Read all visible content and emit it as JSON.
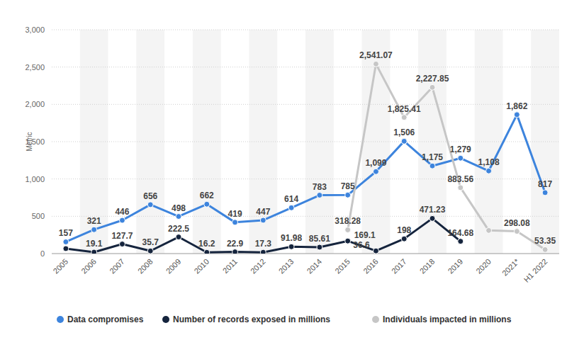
{
  "chart_data": {
    "type": "line",
    "y_label": "Metric",
    "categories": [
      "2005",
      "2006",
      "2007",
      "2008",
      "2009",
      "2010",
      "2011",
      "2012",
      "2013",
      "2014",
      "2015",
      "2016",
      "2017",
      "2018",
      "2019",
      "2020",
      "2021*",
      "H1 2022"
    ],
    "ylim": [
      0,
      3000
    ],
    "yticks": [
      0,
      500,
      {
        "value": 1000,
        "label": "1,000"
      },
      {
        "value": 1500,
        "label": "1,500"
      },
      {
        "value": 2000,
        "label": "2,000"
      },
      {
        "value": 2500,
        "label": "2,500"
      },
      {
        "value": 3000,
        "label": "3,000"
      }
    ],
    "grid": true,
    "legend": "bottom",
    "data_labels": true,
    "marker": "circle",
    "series": [
      {
        "name": "Data compromises",
        "color": "#3d84dd",
        "values": [
          157,
          321,
          446,
          656,
          498,
          662,
          419,
          447,
          614,
          783,
          785,
          1099,
          1506,
          1175,
          1279,
          1108,
          1862,
          817
        ],
        "value_labels": [
          "157",
          "321",
          "446",
          "656",
          "498",
          "662",
          "419",
          "447",
          "614",
          "783",
          "785",
          "1,099",
          "1,506",
          "1,175",
          "1,279",
          "1,108",
          "1,862",
          "817"
        ]
      },
      {
        "name": "Number of records exposed in millions",
        "color": "#15243d",
        "values": [
          67,
          19.1,
          127.7,
          35.7,
          222.5,
          16.2,
          22.9,
          17.3,
          91.98,
          85.61,
          169.1,
          36.6,
          198,
          471.23,
          164.68,
          null,
          null,
          null
        ],
        "value_labels": [
          null,
          "19.1",
          "127.7",
          "35.7",
          "222.5",
          "16.2",
          "22.9",
          "17.3",
          "91.98",
          "85.61",
          "169.1",
          "36.6",
          "198",
          "471.23",
          "164.68",
          null,
          null,
          null
        ]
      },
      {
        "name": "Individuals impacted in millions",
        "color": "#c6c6c6",
        "values": [
          null,
          null,
          null,
          null,
          null,
          null,
          null,
          null,
          null,
          null,
          318.28,
          2541.07,
          1825.41,
          2227.85,
          883.56,
          310,
          298.08,
          53.35
        ],
        "value_labels": [
          null,
          null,
          null,
          null,
          null,
          null,
          null,
          null,
          null,
          null,
          "318.28",
          "2,541.07",
          "1,825.41",
          "2,227.85",
          "883.56",
          null,
          "298.08",
          "53.35"
        ]
      }
    ]
  }
}
